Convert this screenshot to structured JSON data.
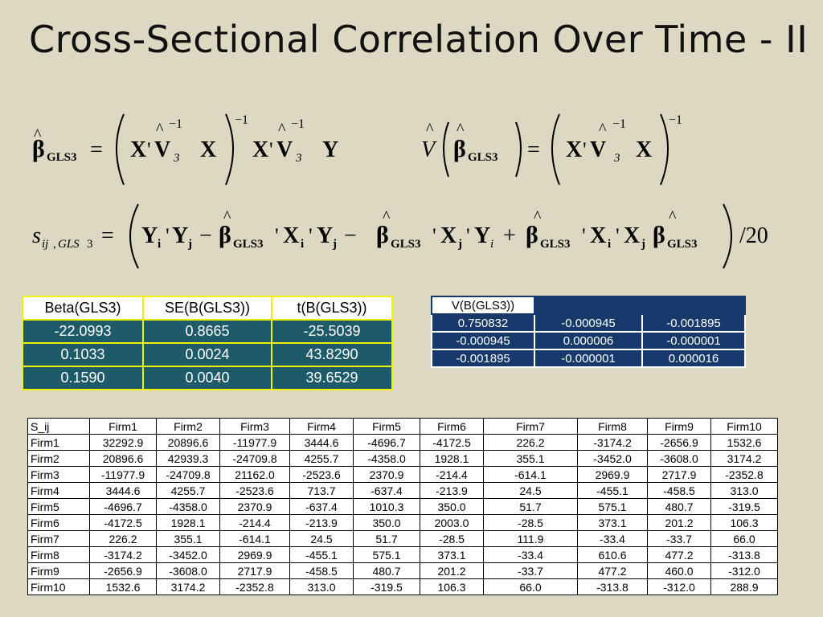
{
  "title": "Cross-Sectional Correlation Over Time - II",
  "formulas": {
    "beta_gls3": "β̂_GLS3 = ( X' V̂₃⁻¹ X )⁻¹ X' V̂₃⁻¹ Y",
    "v_beta_gls3": "V̂( β̂_GLS3 ) = ( X' V̂₃⁻¹ X )⁻¹",
    "s_ij": "s_ij,GLS3 = ( Y_i' Y_j − β̂_GLS3' X_i' Y_j − β̂_GLS3' X_j' Y_i + β̂_GLS3' X_i' X_j β̂_GLS3 ) / 20"
  },
  "beta_table": {
    "headers": [
      "Beta(GLS3)",
      "SE(B(GLS3))",
      "t(B(GLS3))"
    ],
    "rows": [
      [
        "-22.0993",
        "0.8665",
        "-25.5039"
      ],
      [
        "0.1033",
        "0.0024",
        "43.8290"
      ],
      [
        "0.1590",
        "0.0040",
        "39.6529"
      ]
    ]
  },
  "var_table": {
    "headers": [
      "V(B(GLS3))",
      "",
      ""
    ],
    "rows": [
      [
        "0.750832",
        "-0.000945",
        "-0.001895"
      ],
      [
        "-0.000945",
        "0.000006",
        "-0.000001"
      ],
      [
        "-0.001895",
        "-0.000001",
        "0.000016"
      ]
    ]
  },
  "s_table": {
    "headers": [
      "S_ij",
      "Firm1",
      "Firm2",
      "Firm3",
      "Firm4",
      "Firm5",
      "Firm6",
      "Firm7",
      "Firm8",
      "Firm9",
      "Firm10"
    ],
    "rows": [
      [
        "Firm1",
        "32292.9",
        "20896.6",
        "-11977.9",
        "3444.6",
        "-4696.7",
        "-4172.5",
        "226.2",
        "-3174.2",
        "-2656.9",
        "1532.6"
      ],
      [
        "Firm2",
        "20896.6",
        "42939.3",
        "-24709.8",
        "4255.7",
        "-4358.0",
        "1928.1",
        "355.1",
        "-3452.0",
        "-3608.0",
        "3174.2"
      ],
      [
        "Firm3",
        "-11977.9",
        "-24709.8",
        "21162.0",
        "-2523.6",
        "2370.9",
        "-214.4",
        "-614.1",
        "2969.9",
        "2717.9",
        "-2352.8"
      ],
      [
        "Firm4",
        "3444.6",
        "4255.7",
        "-2523.6",
        "713.7",
        "-637.4",
        "-213.9",
        "24.5",
        "-455.1",
        "-458.5",
        "313.0"
      ],
      [
        "Firm5",
        "-4696.7",
        "-4358.0",
        "2370.9",
        "-637.4",
        "1010.3",
        "350.0",
        "51.7",
        "575.1",
        "480.7",
        "-319.5"
      ],
      [
        "Firm6",
        "-4172.5",
        "1928.1",
        "-214.4",
        "-213.9",
        "350.0",
        "2003.0",
        "-28.5",
        "373.1",
        "201.2",
        "106.3"
      ],
      [
        "Firm7",
        "226.2",
        "355.1",
        "-614.1",
        "24.5",
        "51.7",
        "-28.5",
        "111.9",
        "-33.4",
        "-33.7",
        "66.0"
      ],
      [
        "Firm8",
        "-3174.2",
        "-3452.0",
        "2969.9",
        "-455.1",
        "575.1",
        "373.1",
        "-33.4",
        "610.6",
        "477.2",
        "-313.8"
      ],
      [
        "Firm9",
        "-2656.9",
        "-3608.0",
        "2717.9",
        "-458.5",
        "480.7",
        "201.2",
        "-33.7",
        "477.2",
        "460.0",
        "-312.0"
      ],
      [
        "Firm10",
        "1532.6",
        "3174.2",
        "-2352.8",
        "313.0",
        "-319.5",
        "106.3",
        "66.0",
        "-313.8",
        "-312.0",
        "288.9"
      ]
    ]
  }
}
